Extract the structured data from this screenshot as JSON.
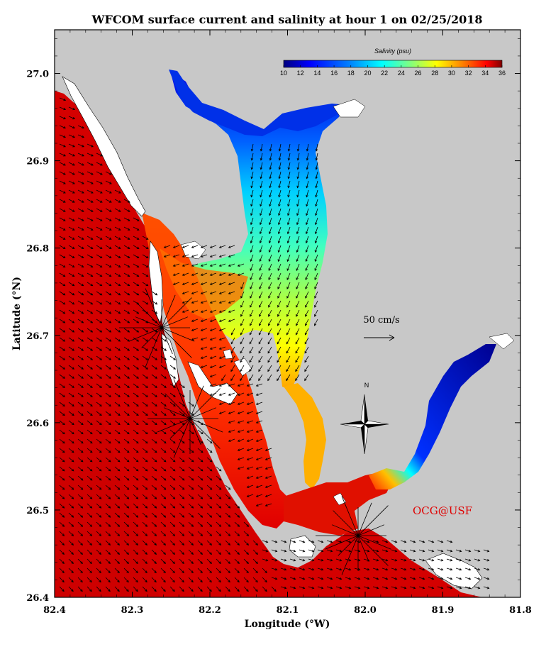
{
  "title": "WFCOM surface current and salinity at hour 1 on 02/25/2018",
  "axes": {
    "xlabel": "Longitude (°W)",
    "ylabel": "Latitude (°N)",
    "xlim": [
      82.4,
      81.8
    ],
    "ylim": [
      26.4,
      27.05
    ],
    "x_ticks": [
      "82.4",
      "82.3",
      "82.2",
      "82.1",
      "82.0",
      "81.9",
      "81.8"
    ],
    "y_ticks": [
      "26.4",
      "26.5",
      "26.6",
      "26.7",
      "26.8",
      "26.9",
      "27.0"
    ]
  },
  "colorbar": {
    "title": "Salinity (psu)",
    "min": 10,
    "max": 36,
    "labels": [
      "10",
      "12",
      "14",
      "16",
      "18",
      "20",
      "22",
      "24",
      "26",
      "28",
      "30",
      "32",
      "34",
      "36"
    ]
  },
  "scale_vector": {
    "label": "50 cm/s",
    "speed_cm_s": 50
  },
  "compass": {
    "north_label": "N"
  },
  "credit": "OCG@USF",
  "colors": {
    "land": "#c8c8c8",
    "gulf_salinity": "#d40000",
    "frame": "#000000",
    "credit": "#e00000"
  }
}
